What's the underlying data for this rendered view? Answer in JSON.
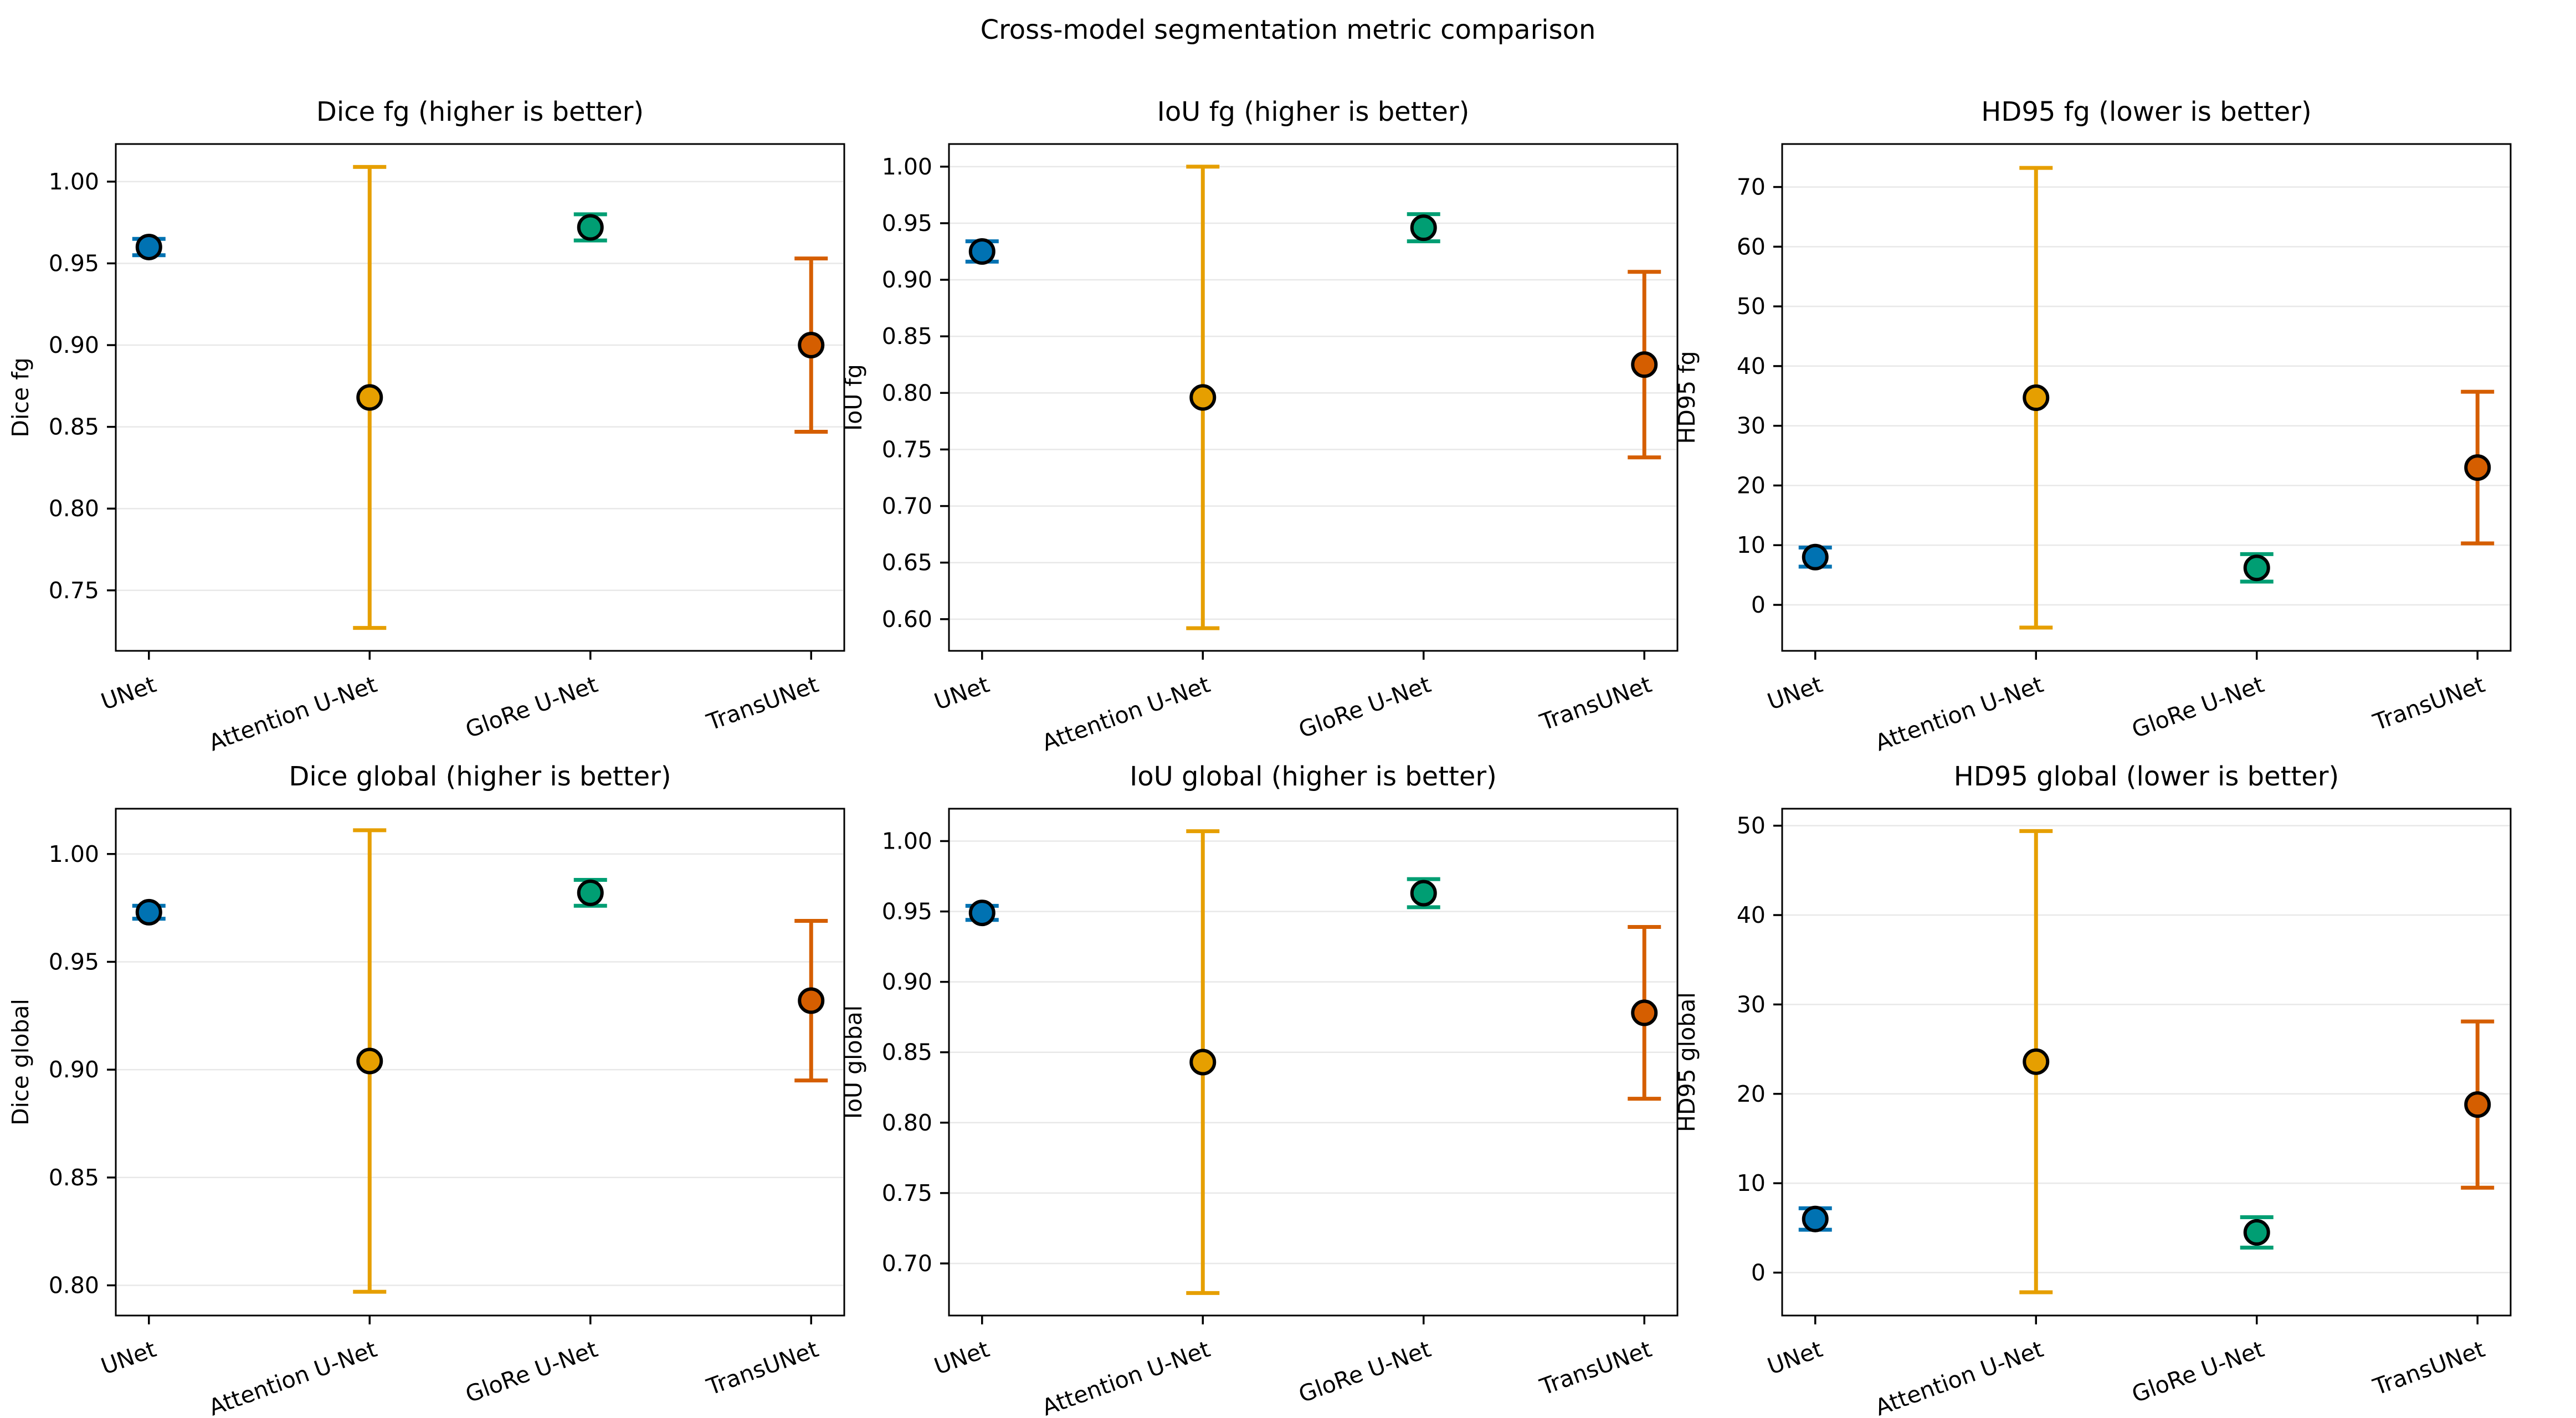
{
  "figure": {
    "title": "Cross-model segmentation metric comparison"
  },
  "models": [
    "UNet",
    "Attention U-Net",
    "GloRe U-Net",
    "TransUNet"
  ],
  "palette": {
    "UNet": "#0072B2",
    "Attention U-Net": "#E69F00",
    "GloRe U-Net": "#009E73",
    "TransUNet": "#D55E00"
  },
  "style": {
    "grid_color": "#e8e8e8",
    "spine_color": "#000000",
    "marker_edge_color": "#000000",
    "background": "#ffffff"
  },
  "chart_data": [
    {
      "type": "errorbar",
      "title": "Dice fg (higher is better)",
      "ylabel": "Dice fg",
      "categories": [
        "UNet",
        "Attention U-Net",
        "GloRe U-Net",
        "TransUNet"
      ],
      "yticks": [
        "1.00",
        "0.95",
        "0.90",
        "0.85",
        "0.80",
        "0.75"
      ],
      "ylim": [
        0.713,
        1.023
      ],
      "grid": true,
      "legend": "none",
      "series": [
        {
          "model": "UNet",
          "mean": 0.96,
          "err": 0.005
        },
        {
          "model": "Attention U-Net",
          "mean": 0.868,
          "err": 0.141
        },
        {
          "model": "GloRe U-Net",
          "mean": 0.972,
          "err": 0.008
        },
        {
          "model": "TransUNet",
          "mean": 0.9,
          "err": 0.053
        }
      ]
    },
    {
      "type": "errorbar",
      "title": "IoU fg (higher is better)",
      "ylabel": "IoU fg",
      "categories": [
        "UNet",
        "Attention U-Net",
        "GloRe U-Net",
        "TransUNet"
      ],
      "yticks": [
        "1.00",
        "0.95",
        "0.90",
        "0.85",
        "0.80",
        "0.75",
        "0.70",
        "0.65",
        "0.60"
      ],
      "ylim": [
        0.572,
        1.02
      ],
      "grid": true,
      "legend": "none",
      "series": [
        {
          "model": "UNet",
          "mean": 0.925,
          "err": 0.009
        },
        {
          "model": "Attention U-Net",
          "mean": 0.796,
          "err": 0.204
        },
        {
          "model": "GloRe U-Net",
          "mean": 0.946,
          "err": 0.012
        },
        {
          "model": "TransUNet",
          "mean": 0.825,
          "err": 0.082
        }
      ]
    },
    {
      "type": "errorbar",
      "title": "HD95 fg (lower is better)",
      "ylabel": "HD95 fg",
      "categories": [
        "UNet",
        "Attention U-Net",
        "GloRe U-Net",
        "TransUNet"
      ],
      "yticks": [
        "70",
        "60",
        "50",
        "40",
        "30",
        "20",
        "10",
        "0"
      ],
      "ylim": [
        -7.7,
        77.2
      ],
      "grid": true,
      "legend": "none",
      "series": [
        {
          "model": "UNet",
          "mean": 8.0,
          "err": 1.6
        },
        {
          "model": "Attention U-Net",
          "mean": 34.7,
          "err": 38.5
        },
        {
          "model": "GloRe U-Net",
          "mean": 6.2,
          "err": 2.3
        },
        {
          "model": "TransUNet",
          "mean": 23.0,
          "err": 12.7
        }
      ]
    },
    {
      "type": "errorbar",
      "title": "Dice global (higher is better)",
      "ylabel": "Dice global",
      "categories": [
        "UNet",
        "Attention U-Net",
        "GloRe U-Net",
        "TransUNet"
      ],
      "yticks": [
        "1.00",
        "0.95",
        "0.90",
        "0.85",
        "0.80"
      ],
      "ylim": [
        0.786,
        1.021
      ],
      "grid": true,
      "legend": "none",
      "series": [
        {
          "model": "UNet",
          "mean": 0.973,
          "err": 0.003
        },
        {
          "model": "Attention U-Net",
          "mean": 0.904,
          "err": 0.107
        },
        {
          "model": "GloRe U-Net",
          "mean": 0.982,
          "err": 0.006
        },
        {
          "model": "TransUNet",
          "mean": 0.932,
          "err": 0.037
        }
      ]
    },
    {
      "type": "errorbar",
      "title": "IoU global (higher is better)",
      "ylabel": "IoU global",
      "categories": [
        "UNet",
        "Attention U-Net",
        "GloRe U-Net",
        "TransUNet"
      ],
      "yticks": [
        "1.00",
        "0.95",
        "0.90",
        "0.85",
        "0.80",
        "0.75",
        "0.70"
      ],
      "ylim": [
        0.663,
        1.023
      ],
      "grid": true,
      "legend": "none",
      "series": [
        {
          "model": "UNet",
          "mean": 0.949,
          "err": 0.005
        },
        {
          "model": "Attention U-Net",
          "mean": 0.843,
          "err": 0.164
        },
        {
          "model": "GloRe U-Net",
          "mean": 0.963,
          "err": 0.01
        },
        {
          "model": "TransUNet",
          "mean": 0.878,
          "err": 0.061
        }
      ]
    },
    {
      "type": "errorbar",
      "title": "HD95 global (lower is better)",
      "ylabel": "HD95 global",
      "categories": [
        "UNet",
        "Attention U-Net",
        "GloRe U-Net",
        "TransUNet"
      ],
      "yticks": [
        "50",
        "40",
        "30",
        "20",
        "10",
        "0"
      ],
      "ylim": [
        -4.8,
        51.9
      ],
      "grid": true,
      "legend": "none",
      "series": [
        {
          "model": "UNet",
          "mean": 6.0,
          "err": 1.2
        },
        {
          "model": "Attention U-Net",
          "mean": 23.6,
          "err": 25.8
        },
        {
          "model": "GloRe U-Net",
          "mean": 4.5,
          "err": 1.7
        },
        {
          "model": "TransUNet",
          "mean": 18.8,
          "err": 9.3
        }
      ]
    }
  ]
}
